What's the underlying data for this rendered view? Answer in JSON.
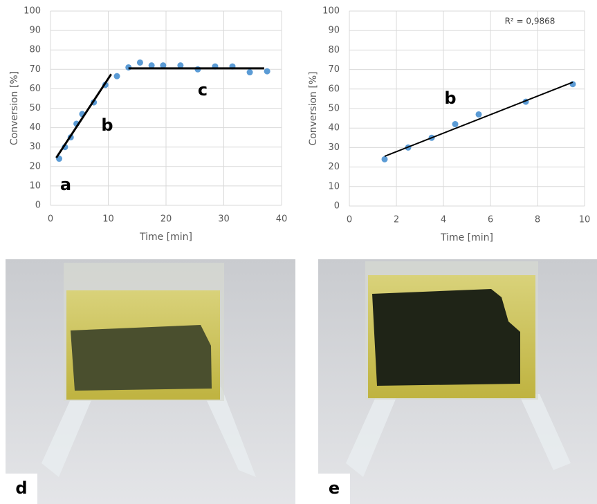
{
  "chart_data": [
    {
      "type": "scatter",
      "xlabel": "Time [min]",
      "ylabel": "Conversion [%]",
      "color": "#5b9bd5",
      "grid": true,
      "x": [
        1.5,
        2.5,
        3.5,
        4.5,
        5.5,
        7.5,
        9.5,
        11.5,
        13.5,
        15.5,
        17.5,
        19.5,
        22.5,
        25.5,
        28.5,
        31.5,
        34.5,
        37.5
      ],
      "values": [
        24,
        30,
        35,
        42,
        47,
        53,
        62,
        66.5,
        71,
        73.5,
        72,
        72,
        72,
        70,
        71.5,
        71.5,
        68.5,
        69
      ],
      "trendlines": [
        {
          "x": [
            1,
            10.5
          ],
          "y": [
            24.5,
            67.5
          ]
        },
        {
          "x": [
            13.5,
            37
          ],
          "y": [
            70.5,
            70.5
          ]
        }
      ],
      "annotations": [
        "a",
        "b",
        "c"
      ],
      "xlim": [
        0,
        40
      ],
      "xticks": [
        0,
        10,
        20,
        30,
        40
      ],
      "ylim": [
        0,
        100
      ],
      "yticks": [
        0,
        10,
        20,
        30,
        40,
        50,
        60,
        70,
        80,
        90,
        100
      ]
    },
    {
      "type": "scatter",
      "xlabel": "Time [min]",
      "ylabel": "Conversion [%]",
      "color": "#5b9bd5",
      "grid": true,
      "x": [
        1.5,
        2.5,
        3.5,
        4.5,
        5.5,
        7.5,
        9.5
      ],
      "values": [
        24,
        30,
        35,
        42,
        47,
        53.5,
        62.5
      ],
      "trendlines": [
        {
          "x": [
            1.5,
            9.5
          ],
          "y": [
            25.5,
            63.5
          ]
        }
      ],
      "annotations": [
        "b",
        "R² = 0,9868"
      ],
      "xlim": [
        0,
        10
      ],
      "xticks": [
        0,
        2,
        4,
        6,
        8,
        10
      ],
      "ylim": [
        0,
        100
      ],
      "yticks": [
        0,
        10,
        20,
        30,
        40,
        50,
        60,
        70,
        80,
        90,
        100
      ]
    }
  ],
  "photos": [
    {
      "label": "d"
    },
    {
      "label": "e"
    }
  ]
}
